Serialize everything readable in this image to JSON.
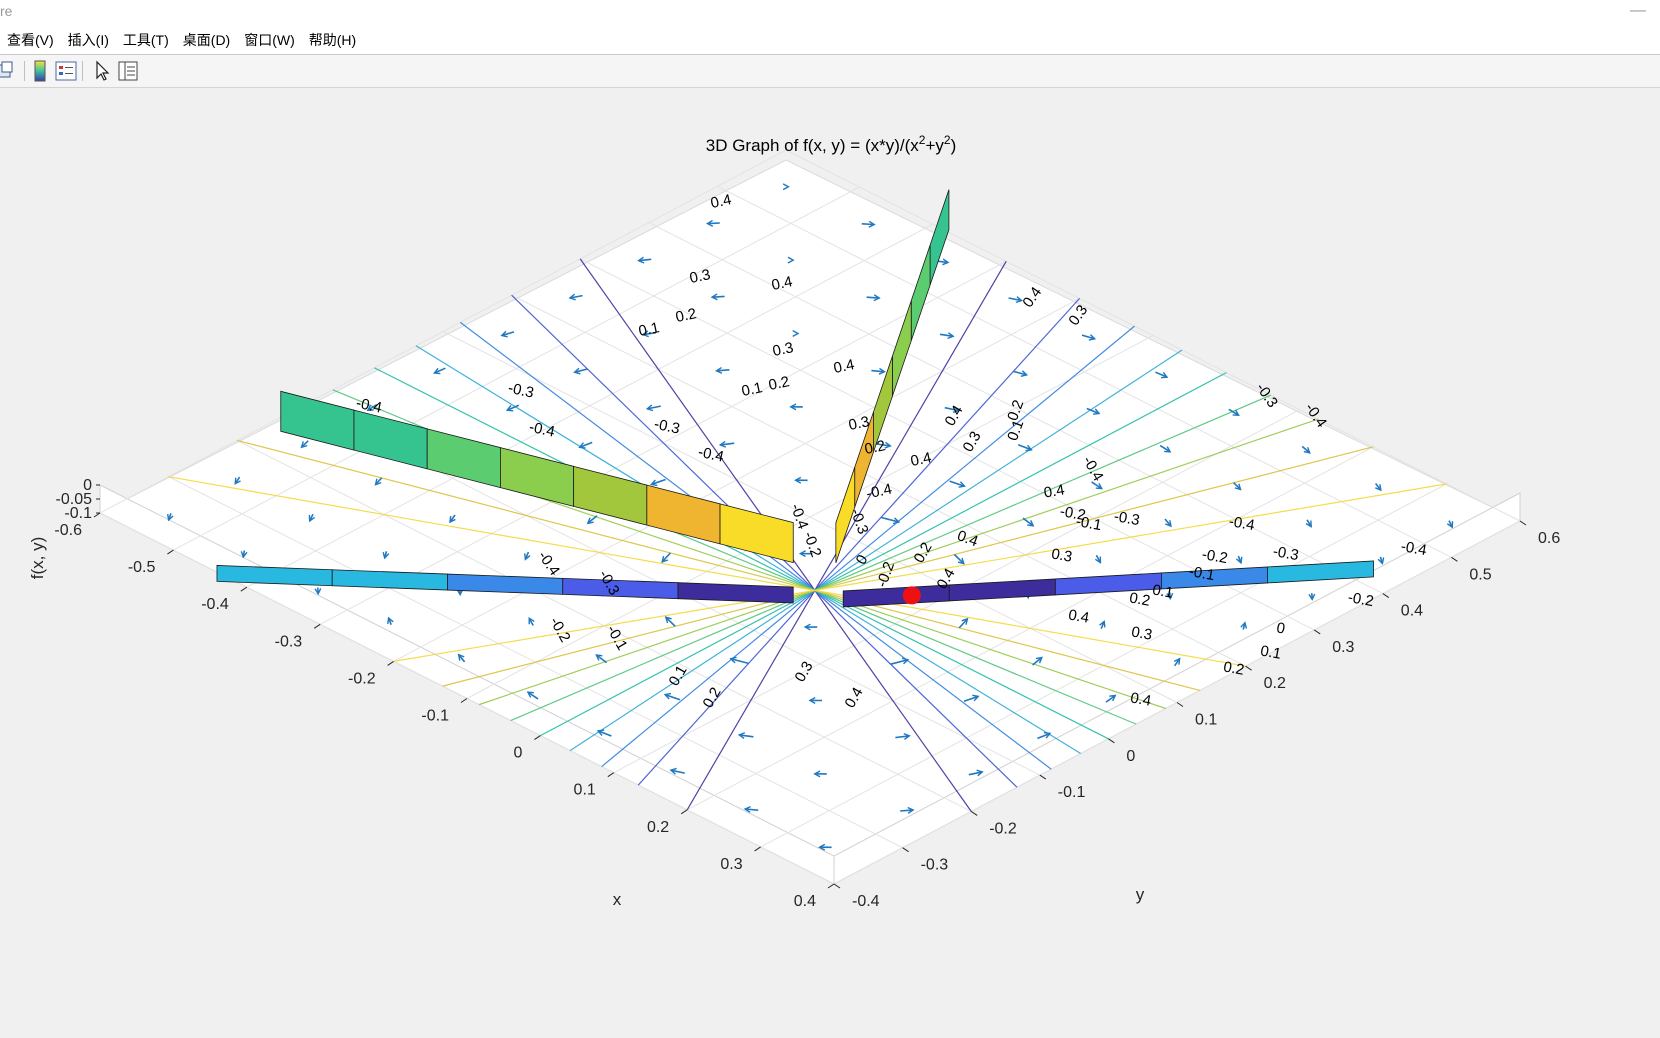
{
  "window": {
    "title": "re",
    "minimize_glyph": "—"
  },
  "menu": [
    "查看(V)",
    "插入(I)",
    "工具(T)",
    "桌面(D)",
    "窗口(W)",
    "帮助(H)"
  ],
  "toolbar": {
    "icons": [
      "link-plot-icon",
      "colorbar-icon",
      "legend-icon",
      "pointer-icon",
      "property-inspector-icon"
    ]
  },
  "colors": {
    "quiver": "#1f78c0",
    "critical_point": "#ee1111",
    "surface_positive": [
      "#35c48f",
      "#5ccc70",
      "#8bcd4c",
      "#a2c73c",
      "#f0b530",
      "#f8dc28"
    ],
    "surface_negative": [
      "#3d2c9c",
      "#4a5ce8",
      "#3a88e8",
      "#28b8e0"
    ]
  },
  "chart_data": {
    "type": "surface3d",
    "title_parts": [
      "3D Graph of f(x, y) = (x*y)/(x",
      "2",
      "+y",
      "2",
      ")"
    ],
    "xlabel": "x",
    "ylabel": "y",
    "zlabel": "f(x, y)",
    "xlim": [
      -0.6,
      0.4
    ],
    "ylim": [
      -0.4,
      0.6
    ],
    "zlim": [
      -0.1,
      0
    ],
    "x_ticks": [
      "-0.6",
      "-0.5",
      "-0.4",
      "-0.3",
      "-0.2",
      "-0.1",
      "0",
      "0.1",
      "0.2",
      "0.3",
      "0.4"
    ],
    "y_ticks": [
      "-0.4",
      "-0.3",
      "-0.2",
      "-0.1",
      "0",
      "0.1",
      "0.2",
      "0.3",
      "0.4",
      "0.5",
      "0.6"
    ],
    "z_ticks": [
      "0",
      "-0.05",
      "-0.1"
    ],
    "grid": true,
    "contour_levels": [
      -0.4,
      -0.3,
      -0.2,
      -0.1,
      0,
      0.1,
      0.2,
      0.3,
      0.4
    ],
    "contour_labels": [
      {
        "t": "0.4",
        "x": 722,
        "y": 118,
        "r": -12
      },
      {
        "t": "0.3",
        "x": 701,
        "y": 193,
        "r": -12
      },
      {
        "t": "0.4",
        "x": 783,
        "y": 200,
        "r": -12
      },
      {
        "t": "0.1",
        "x": 650,
        "y": 246,
        "r": -12
      },
      {
        "t": "0.2",
        "x": 687,
        "y": 232,
        "r": -12
      },
      {
        "t": "0.3",
        "x": 784,
        "y": 266,
        "r": -12
      },
      {
        "t": "0.1",
        "x": 753,
        "y": 306,
        "r": -12
      },
      {
        "t": "0.2",
        "x": 780,
        "y": 300,
        "r": -12
      },
      {
        "t": "0.4",
        "x": 845,
        "y": 283,
        "r": -12
      },
      {
        "t": "0.3",
        "x": 860,
        "y": 340,
        "r": -12
      },
      {
        "t": "0.2",
        "x": 876,
        "y": 364,
        "r": -12
      },
      {
        "t": "0.4",
        "x": 922,
        "y": 376,
        "r": -12
      },
      {
        "t": "0.4",
        "x": 1036,
        "y": 212,
        "r": -55
      },
      {
        "t": "0.3",
        "x": 1082,
        "y": 230,
        "r": -55
      },
      {
        "t": "0.4",
        "x": 958,
        "y": 330,
        "r": -60
      },
      {
        "t": "0.3",
        "x": 976,
        "y": 356,
        "r": -60
      },
      {
        "t": "0.2",
        "x": 1020,
        "y": 324,
        "r": -70
      },
      {
        "t": "0.1",
        "x": 1020,
        "y": 344,
        "r": -70
      },
      {
        "t": "-0.3",
        "x": 1263,
        "y": 310,
        "r": 55
      },
      {
        "t": "-0.4",
        "x": 1312,
        "y": 330,
        "r": 55
      },
      {
        "t": "-0.4",
        "x": 1089,
        "y": 383,
        "r": 60
      },
      {
        "t": "-0.4",
        "x": 368,
        "y": 322,
        "r": 12
      },
      {
        "t": "-0.3",
        "x": 520,
        "y": 307,
        "r": 12
      },
      {
        "t": "-0.4",
        "x": 541,
        "y": 346,
        "r": 12
      },
      {
        "t": "-0.3",
        "x": 666,
        "y": 343,
        "r": 12
      },
      {
        "t": "-0.4",
        "x": 710,
        "y": 371,
        "r": 12
      },
      {
        "t": "-0.4",
        "x": 880,
        "y": 408,
        "r": -12
      },
      {
        "t": "-0.4",
        "x": 795,
        "y": 430,
        "r": 70
      },
      {
        "t": "-0.2",
        "x": 808,
        "y": 458,
        "r": 70
      },
      {
        "t": "-0.3",
        "x": 855,
        "y": 435,
        "r": 70
      },
      {
        "t": "0.4",
        "x": 966,
        "y": 455,
        "r": 20
      },
      {
        "t": "0.4",
        "x": 1055,
        "y": 408,
        "r": -10
      },
      {
        "t": "-0.2",
        "x": 1072,
        "y": 430,
        "r": 10
      },
      {
        "t": "-0.1",
        "x": 1088,
        "y": 440,
        "r": 10
      },
      {
        "t": "-0.3",
        "x": 1126,
        "y": 435,
        "r": 10
      },
      {
        "t": "-0.4",
        "x": 1241,
        "y": 440,
        "r": 10
      },
      {
        "t": "-0.3",
        "x": 1285,
        "y": 470,
        "r": 10
      },
      {
        "t": "-0.4",
        "x": 1413,
        "y": 465,
        "r": 10
      },
      {
        "t": "0.3",
        "x": 1061,
        "y": 472,
        "r": 10
      },
      {
        "t": "-0.2",
        "x": 1214,
        "y": 473,
        "r": 10
      },
      {
        "t": "-0.1",
        "x": 1201,
        "y": 490,
        "r": 10
      },
      {
        "t": "-0.2",
        "x": 1360,
        "y": 516,
        "r": 10
      },
      {
        "t": "0.1",
        "x": 1162,
        "y": 508,
        "r": 10
      },
      {
        "t": "0.2",
        "x": 1139,
        "y": 516,
        "r": 10
      },
      {
        "t": "0",
        "x": 1280,
        "y": 545,
        "r": 10
      },
      {
        "t": "0.1",
        "x": 1270,
        "y": 569,
        "r": 10
      },
      {
        "t": "0.4",
        "x": 1078,
        "y": 533,
        "r": 10
      },
      {
        "t": "0.3",
        "x": 1141,
        "y": 550,
        "r": 10
      },
      {
        "t": "0.2",
        "x": 1233,
        "y": 585,
        "r": 10
      },
      {
        "t": "0.4",
        "x": 1140,
        "y": 616,
        "r": 10
      },
      {
        "t": "-0.4",
        "x": 545,
        "y": 478,
        "r": 55
      },
      {
        "t": "-0.3",
        "x": 605,
        "y": 497,
        "r": 60
      },
      {
        "t": "-0.2",
        "x": 556,
        "y": 544,
        "r": 60
      },
      {
        "t": "-0.1",
        "x": 613,
        "y": 552,
        "r": 60
      },
      {
        "t": "0.1",
        "x": 682,
        "y": 590,
        "r": -60
      },
      {
        "t": "0.2",
        "x": 716,
        "y": 612,
        "r": -60
      },
      {
        "t": "0.3",
        "x": 808,
        "y": 586,
        "r": -60
      },
      {
        "t": "0.4",
        "x": 858,
        "y": 612,
        "r": -60
      },
      {
        "t": "0.4",
        "x": 950,
        "y": 493,
        "r": -60
      },
      {
        "t": "-0.2",
        "x": 890,
        "y": 488,
        "r": -70
      },
      {
        "t": "0.2",
        "x": 927,
        "y": 467,
        "r": -60
      },
      {
        "t": "0",
        "x": 866,
        "y": 474,
        "r": -60
      }
    ],
    "surface_strips": [
      {
        "name": "y=0 branch (x<0)",
        "z": 0
      },
      {
        "name": "x=0 branch (y>0)",
        "z": 0
      },
      {
        "name": "negative branch (x<0)",
        "z": -0.1
      },
      {
        "name": "negative branch (y>0)",
        "z": -0.1
      }
    ],
    "critical_point": {
      "x": 0,
      "y": 0
    }
  }
}
